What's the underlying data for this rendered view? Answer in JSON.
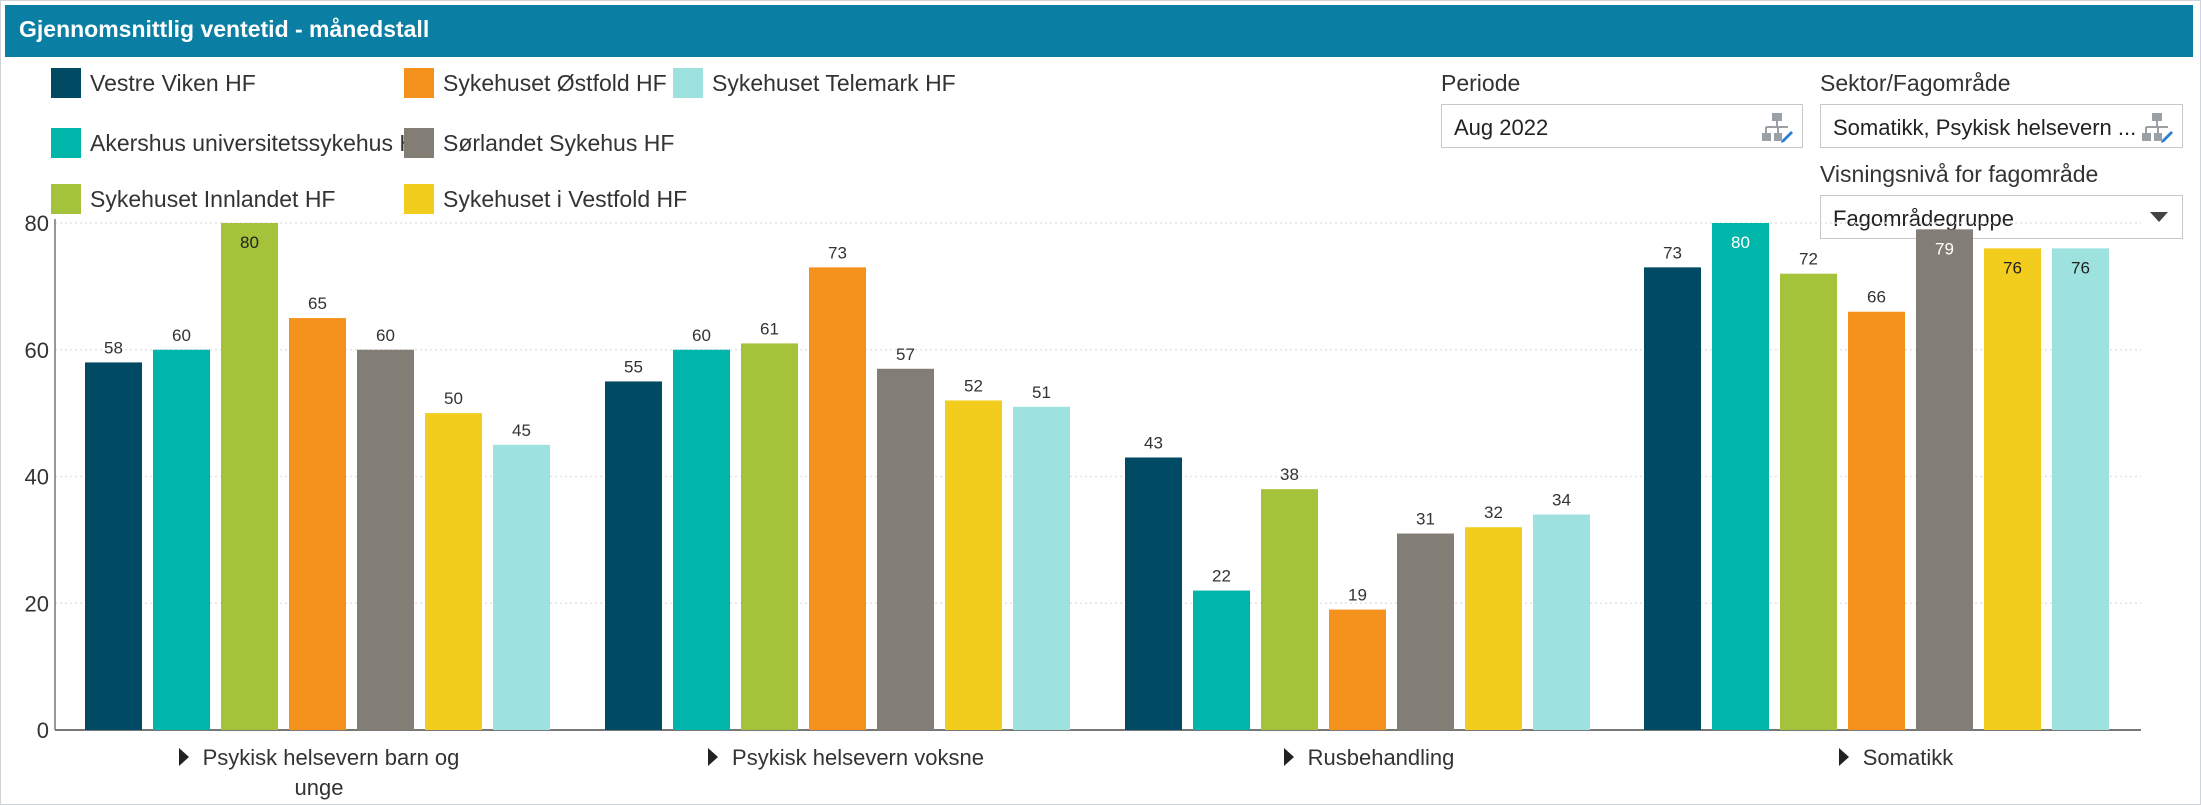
{
  "title": "Gjennomsnittlig ventetid - månedstall",
  "controls": {
    "periode": {
      "label": "Periode",
      "value": "Aug 2022"
    },
    "sektor": {
      "label": "Sektor/Fagområde",
      "value": "Somatikk, Psykisk helsevern ..."
    },
    "visning": {
      "label": "Visningsnivå for fagområde",
      "value": "Fagområdegruppe"
    }
  },
  "colors": {
    "title_bar": "#0a7fa3",
    "Vestre Viken HF": "#004a63",
    "Akershus universitetssykehus HF": "#00b5aa",
    "Sykehuset Innlandet HF": "#a4c23a",
    "Sykehuset Østfold HF": "#f5921e",
    "Sørlandet Sykehus HF": "#827e76",
    "Sykehuset i Vestfold HF": "#f3cd1d",
    "Sykehuset Telemark HF": "#9ee2e0"
  },
  "chart_data": {
    "type": "bar",
    "categories": [
      "Psykisk helsevern barn og unge",
      "Psykisk helsevern voksne",
      "Rusbehandling",
      "Somatikk"
    ],
    "ylim": [
      0,
      80
    ],
    "yticks": [
      0,
      20,
      40,
      60,
      80
    ],
    "legend_position": "top-left",
    "series": [
      {
        "name": "Vestre Viken HF",
        "values": [
          58,
          55,
          43,
          73
        ],
        "labels": [
          "58",
          "55",
          "43",
          "73"
        ]
      },
      {
        "name": "Akershus universitetssykehus HF",
        "values": [
          60,
          60,
          22,
          80
        ],
        "labels": [
          "60",
          "60",
          "22",
          "80"
        ]
      },
      {
        "name": "Sykehuset Innlandet HF",
        "values": [
          80,
          61,
          38,
          72
        ],
        "labels": [
          "80",
          "61",
          "38",
          "72"
        ]
      },
      {
        "name": "Sykehuset Østfold HF",
        "values": [
          65,
          73,
          19,
          66
        ],
        "labels": [
          "65",
          "73",
          "19",
          "66"
        ]
      },
      {
        "name": "Sørlandet Sykehus HF",
        "values": [
          60,
          57,
          31,
          79
        ],
        "labels": [
          "60",
          "57",
          "31",
          "79"
        ]
      },
      {
        "name": "Sykehuset i Vestfold HF",
        "values": [
          50,
          52,
          32,
          76
        ],
        "labels": [
          "50",
          "52",
          "32",
          "76"
        ]
      },
      {
        "name": "Sykehuset Telemark HF",
        "values": [
          45,
          51,
          34,
          76
        ],
        "labels": [
          "45",
          "51",
          "34",
          "76"
        ]
      }
    ],
    "legend_order": [
      "Vestre Viken HF",
      "Sykehuset Østfold HF",
      "Sykehuset Telemark HF",
      "Akershus universitetssykehus HF",
      "Sørlandet Sykehus HF",
      "Sykehuset Innlandet HF",
      "Sykehuset i Vestfold HF"
    ]
  }
}
